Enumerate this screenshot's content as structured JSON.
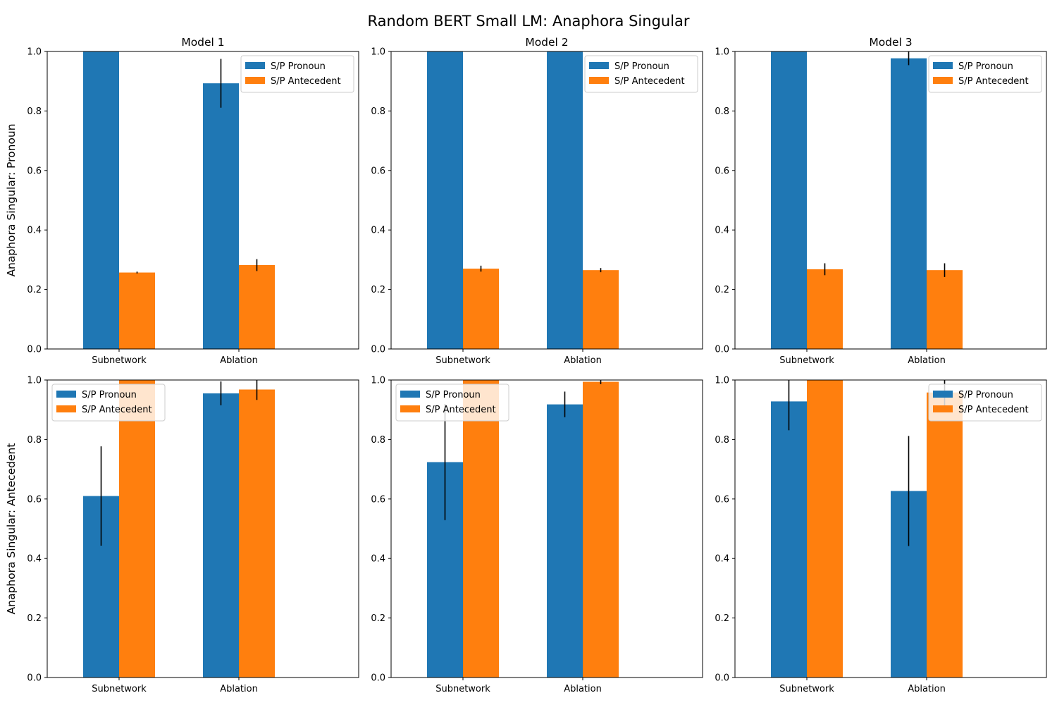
{
  "suptitle": "Random BERT Small LM: Anaphora Singular",
  "colors": {
    "pronoun": "#1f77b4",
    "antecedent": "#ff7f0e",
    "errorbar": "#000000",
    "axes": "#000000",
    "legend_border": "#cccccc"
  },
  "chart_data": [
    {
      "type": "bar",
      "title": "Model 1",
      "ylabel": "Anaphora Singular: Pronoun",
      "ylim": [
        0,
        1
      ],
      "yticks": [
        "0.0",
        "0.2",
        "0.4",
        "0.6",
        "0.8",
        "1.0"
      ],
      "categories": [
        "Subnetwork",
        "Ablation"
      ],
      "legend": "upper right",
      "series": [
        {
          "name": "S/P Pronoun",
          "values": [
            1.0,
            0.893
          ],
          "errors": [
            0.0,
            0.082
          ]
        },
        {
          "name": "S/P Antecedent",
          "values": [
            0.257,
            0.282
          ],
          "errors": [
            0.003,
            0.02
          ]
        }
      ]
    },
    {
      "type": "bar",
      "title": "Model 2",
      "ylabel": "",
      "ylim": [
        0,
        1
      ],
      "yticks": [
        "0.0",
        "0.2",
        "0.4",
        "0.6",
        "0.8",
        "1.0"
      ],
      "categories": [
        "Subnetwork",
        "Ablation"
      ],
      "legend": "upper right",
      "series": [
        {
          "name": "S/P Pronoun",
          "values": [
            1.0,
            1.0
          ],
          "errors": [
            0.0,
            0.0
          ]
        },
        {
          "name": "S/P Antecedent",
          "values": [
            0.27,
            0.265
          ],
          "errors": [
            0.01,
            0.007
          ]
        }
      ]
    },
    {
      "type": "bar",
      "title": "Model 3",
      "ylabel": "",
      "ylim": [
        0,
        1
      ],
      "yticks": [
        "0.0",
        "0.2",
        "0.4",
        "0.6",
        "0.8",
        "1.0"
      ],
      "categories": [
        "Subnetwork",
        "Ablation"
      ],
      "legend": "upper right",
      "series": [
        {
          "name": "S/P Pronoun",
          "values": [
            1.0,
            0.977
          ],
          "errors": [
            0.0,
            0.023
          ]
        },
        {
          "name": "S/P Antecedent",
          "values": [
            0.268,
            0.265
          ],
          "errors": [
            0.02,
            0.023
          ]
        }
      ]
    },
    {
      "type": "bar",
      "title": "",
      "ylabel": "Anaphora Singular: Antecedent",
      "ylim": [
        0,
        1
      ],
      "yticks": [
        "0.0",
        "0.2",
        "0.4",
        "0.6",
        "0.8",
        "1.0"
      ],
      "categories": [
        "Subnetwork",
        "Ablation"
      ],
      "legend": "upper left",
      "series": [
        {
          "name": "S/P Pronoun",
          "values": [
            0.61,
            0.955
          ],
          "errors": [
            0.167,
            0.04
          ]
        },
        {
          "name": "S/P Antecedent",
          "values": [
            1.0,
            0.968
          ],
          "errors": [
            0.0,
            0.035
          ]
        }
      ]
    },
    {
      "type": "bar",
      "title": "",
      "ylabel": "",
      "ylim": [
        0,
        1
      ],
      "yticks": [
        "0.0",
        "0.2",
        "0.4",
        "0.6",
        "0.8",
        "1.0"
      ],
      "categories": [
        "Subnetwork",
        "Ablation"
      ],
      "legend": "upper left",
      "series": [
        {
          "name": "S/P Pronoun",
          "values": [
            0.724,
            0.918
          ],
          "errors": [
            0.195,
            0.043
          ]
        },
        {
          "name": "S/P Antecedent",
          "values": [
            1.0,
            0.994
          ],
          "errors": [
            0.0,
            0.008
          ]
        }
      ]
    },
    {
      "type": "bar",
      "title": "",
      "ylabel": "",
      "ylim": [
        0,
        1
      ],
      "yticks": [
        "0.0",
        "0.2",
        "0.4",
        "0.6",
        "0.8",
        "1.0"
      ],
      "categories": [
        "Subnetwork",
        "Ablation"
      ],
      "legend": "upper right",
      "series": [
        {
          "name": "S/P Pronoun",
          "values": [
            0.928,
            0.627
          ],
          "errors": [
            0.097,
            0.185
          ]
        },
        {
          "name": "S/P Antecedent",
          "values": [
            1.0,
            0.958
          ],
          "errors": [
            0.0,
            0.05
          ]
        }
      ]
    }
  ]
}
